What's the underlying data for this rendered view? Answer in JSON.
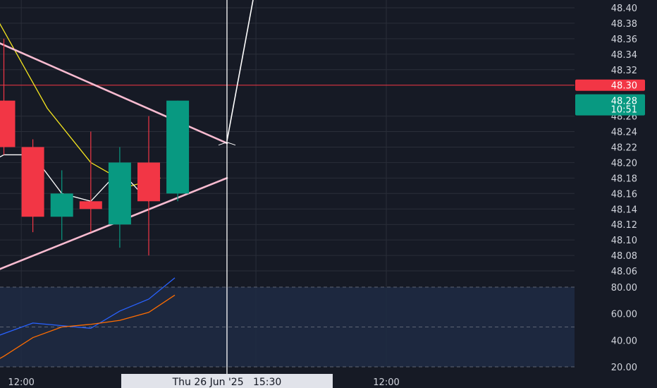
{
  "chart_data": [
    {
      "type": "candlestick",
      "title": "",
      "price_scale": {
        "ylim": [
          48.05,
          48.41
        ],
        "tick_labels": [
          "48.40",
          "48.38",
          "48.36",
          "48.34",
          "48.32",
          "48.26",
          "48.24",
          "48.22",
          "48.20",
          "48.18",
          "48.16",
          "48.14",
          "48.12",
          "48.10",
          "48.08",
          "48.06"
        ]
      },
      "candles": [
        {
          "open": 48.28,
          "high": 48.36,
          "low": 48.21,
          "close": 48.22
        },
        {
          "open": 48.22,
          "high": 48.23,
          "low": 48.11,
          "close": 48.13
        },
        {
          "open": 48.13,
          "high": 48.19,
          "low": 48.1,
          "close": 48.16
        },
        {
          "open": 48.15,
          "high": 48.24,
          "low": 48.11,
          "close": 48.14
        },
        {
          "open": 48.12,
          "high": 48.22,
          "low": 48.09,
          "close": 48.2
        },
        {
          "open": 48.2,
          "high": 48.26,
          "low": 48.08,
          "close": 48.15
        },
        {
          "open": 48.16,
          "high": 48.28,
          "low": 48.15,
          "close": 48.28
        }
      ],
      "moving_averages": [
        {
          "color": "#f5e61f",
          "values": [
            [
              -0.6,
              48.41
            ],
            [
              1.5,
              48.27
            ],
            [
              3.0,
              48.2
            ],
            [
              4.4,
              48.17
            ],
            [
              5.4,
              48.18
            ]
          ]
        },
        {
          "color": "#ffffff",
          "values": [
            [
              -0.5,
              48.2
            ],
            [
              0,
              48.21
            ],
            [
              1.0,
              48.21
            ],
            [
              2.0,
              48.16
            ],
            [
              3.0,
              48.15
            ],
            [
              4.0,
              48.19
            ],
            [
              5.0,
              48.15
            ]
          ]
        }
      ],
      "trendlines": [
        {
          "color": "#f8bbd0",
          "from": [
            -0.5,
            48.36
          ],
          "to": [
            7.7,
            48.225
          ]
        },
        {
          "color": "#f8bbd0",
          "from": [
            -0.5,
            48.057
          ],
          "to": [
            7.7,
            48.18
          ]
        }
      ],
      "projection": {
        "color": "#ffffff",
        "points": [
          [
            7.7,
            48.228
          ],
          [
            8.6,
            48.41
          ]
        ]
      },
      "horizontal_line": {
        "value": 48.3,
        "color": "#f23645",
        "label": "48.30"
      },
      "current_price": {
        "price": "48.28",
        "countdown": "10:51",
        "value": 48.28,
        "color": "#089981"
      },
      "colors": {
        "up": "#089981",
        "down": "#f23645",
        "background": "#161a25",
        "grid": "#2a2e39",
        "text": "#d1d4dc"
      }
    },
    {
      "type": "line",
      "title": "",
      "ylim": [
        20,
        80
      ],
      "tick_labels": [
        "80.00",
        "60.00",
        "40.00",
        "20.00"
      ],
      "bands": [
        80,
        50,
        20
      ],
      "series": [
        {
          "color": "#2962ff",
          "values": [
            [
              -0.5,
              41
            ],
            [
              0,
              45
            ],
            [
              1.0,
              53
            ],
            [
              2.0,
              51
            ],
            [
              3.0,
              49
            ],
            [
              4.0,
              62
            ],
            [
              5.0,
              71
            ],
            [
              5.9,
              87
            ]
          ]
        },
        {
          "color": "#ff6d00",
          "values": [
            [
              -0.5,
              22
            ],
            [
              0,
              28
            ],
            [
              1.0,
              42
            ],
            [
              2.0,
              50
            ],
            [
              3.0,
              52
            ],
            [
              4.0,
              55
            ],
            [
              5.0,
              61
            ],
            [
              5.9,
              74
            ]
          ]
        }
      ]
    }
  ],
  "time_axis": {
    "labels": [
      {
        "slot": 0.6,
        "text": "12:00"
      },
      {
        "slot": 13.2,
        "text": "12:00"
      }
    ],
    "cursor": {
      "slot": 7.7,
      "label": "Thu 26 Jun '25   15:30"
    }
  }
}
